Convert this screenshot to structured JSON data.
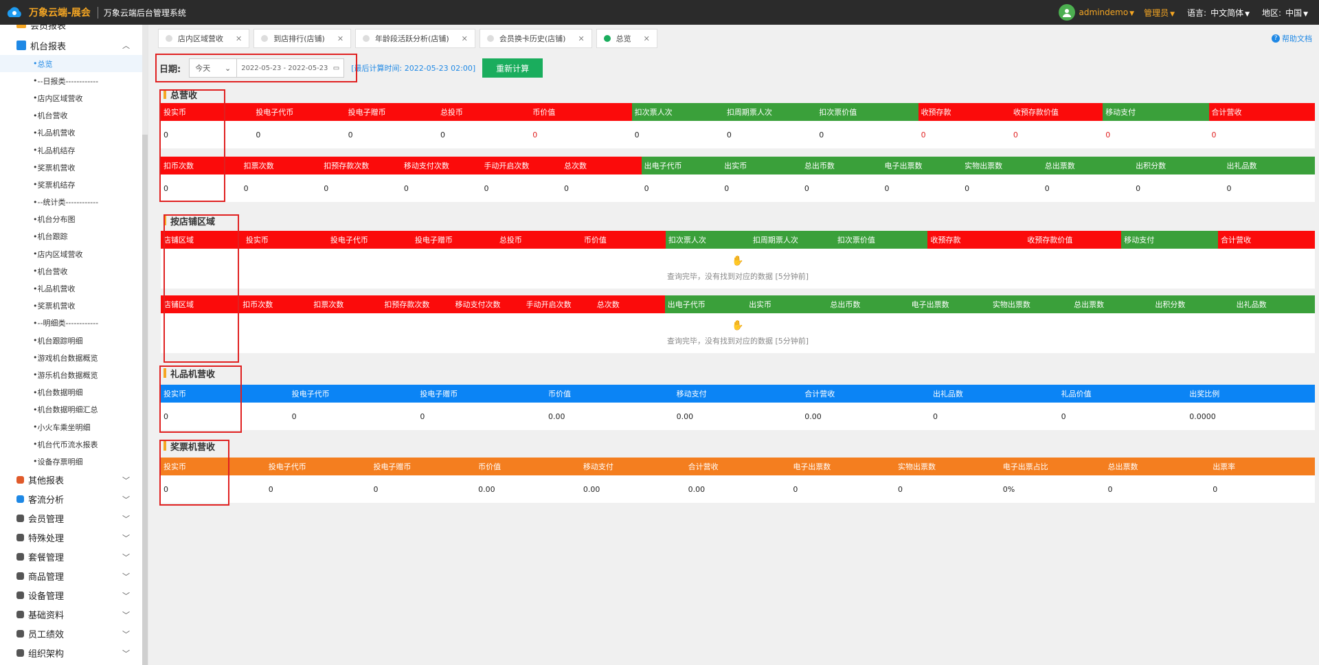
{
  "topbar": {
    "brand": "万象云端-展会",
    "system_name": "万象云端后台管理系统",
    "username": "admindemo",
    "role": "管理员",
    "language_label": "语言:",
    "language_value": "中文简体",
    "region_label": "地区:",
    "region_value": "中国"
  },
  "sidebar": {
    "top_group": "会员报表",
    "machine_group": "机台报表",
    "items": [
      "总览",
      "--日报类------------",
      "店内区域营收",
      "机台营收",
      "礼品机营收",
      "礼品机结存",
      "奖票机营收",
      "奖票机结存",
      "--统计类------------",
      "机台分布图",
      "机台跟踪",
      "店内区域营收",
      "机台营收",
      "礼品机营收",
      "奖票机营收",
      "--明细类------------",
      "机台跟踪明细",
      "游戏机台数据概览",
      "游乐机台数据概览",
      "机台数据明细",
      "机台数据明细汇总",
      "小火车乘坐明细",
      "机台代币流水报表",
      "设备存票明细"
    ],
    "groups": [
      "其他报表",
      "客流分析",
      "会员管理",
      "特殊处理",
      "套餐管理",
      "商品管理",
      "设备管理",
      "基础资料",
      "员工绩效",
      "组织架构"
    ]
  },
  "tabs": [
    {
      "label": "店内区域营收"
    },
    {
      "label": "到店排行(店铺)"
    },
    {
      "label": "年龄段活跃分析(店铺)"
    },
    {
      "label": "会员换卡历史(店铺)"
    },
    {
      "label": "总览"
    }
  ],
  "help_label": "帮助文档",
  "filter": {
    "date_label": "日期:",
    "period": "今天",
    "range": "2022-05-23 - 2022-05-23",
    "last_calc": "[最后计算时间: 2022-05-23 02:00]",
    "recalc_button": "重新计算"
  },
  "sections": {
    "total": {
      "title": "总营收",
      "row1_headers": [
        "投实币",
        "投电子代币",
        "投电子赠币",
        "总投币",
        "币价值",
        "扣次票人次",
        "扣周期票人次",
        "扣次票价值",
        "收预存款",
        "收预存款价值",
        "移动支付",
        "合计营收"
      ],
      "row1_values": [
        "0",
        "0",
        "0",
        "0",
        "0",
        "0",
        "0",
        "0",
        "0",
        "0",
        "0",
        "0"
      ],
      "row2_headers": [
        "扣币次数",
        "扣票次数",
        "扣预存款次数",
        "移动支付次数",
        "手动开启次数",
        "总次数",
        "出电子代币",
        "出实币",
        "总出币数",
        "电子出票数",
        "实物出票数",
        "总出票数",
        "出积分数",
        "出礼品数"
      ],
      "row2_values": [
        "0",
        "0",
        "0",
        "0",
        "0",
        "0",
        "0",
        "0",
        "0",
        "0",
        "0",
        "0",
        "0",
        "0"
      ]
    },
    "store_area": {
      "title": "按店铺区域",
      "row1_headers": [
        "店铺区域",
        "投实币",
        "投电子代币",
        "投电子赠币",
        "总投币",
        "币价值",
        "扣次票人次",
        "扣周期票人次",
        "扣次票价值",
        "收预存款",
        "收预存款价值",
        "移动支付",
        "合计营收"
      ],
      "row2_headers": [
        "店铺区域",
        "扣币次数",
        "扣票次数",
        "扣预存款次数",
        "移动支付次数",
        "手动开启次数",
        "总次数",
        "出电子代币",
        "出实币",
        "总出币数",
        "电子出票数",
        "实物出票数",
        "总出票数",
        "出积分数",
        "出礼品数"
      ],
      "empty_text": "查询完毕，没有找到对应的数据 [5分钟前]"
    },
    "gift": {
      "title": "礼品机营收",
      "headers": [
        "投实币",
        "投电子代币",
        "投电子赠币",
        "币价值",
        "移动支付",
        "合计营收",
        "出礼品数",
        "礼品价值",
        "出奖比例"
      ],
      "values": [
        "0",
        "0",
        "0",
        "0.00",
        "0.00",
        "0.00",
        "0",
        "0",
        "0.0000"
      ]
    },
    "ticket": {
      "title": "奖票机营收",
      "headers": [
        "投实币",
        "投电子代币",
        "投电子赠币",
        "币价值",
        "移动支付",
        "合计营收",
        "电子出票数",
        "实物出票数",
        "电子出票占比",
        "总出票数",
        "出票率"
      ],
      "values": [
        "0",
        "0",
        "0",
        "0.00",
        "0.00",
        "0.00",
        "0",
        "0",
        "0%",
        "0",
        "0"
      ]
    }
  },
  "colors": {
    "red": "#fb0b0b",
    "green": "#3aa03a",
    "blue": "#0b84f5",
    "orange": "#f47e1f",
    "accent_green": "#1aad5d",
    "brand_orange": "#f5a623"
  }
}
